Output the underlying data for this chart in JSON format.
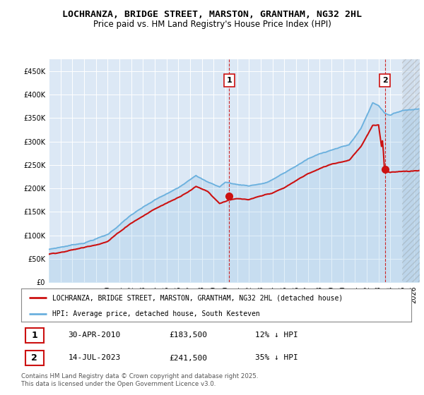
{
  "title": "LOCHRANZA, BRIDGE STREET, MARSTON, GRANTHAM, NG32 2HL",
  "subtitle": "Price paid vs. HM Land Registry's House Price Index (HPI)",
  "ylim": [
    0,
    475000
  ],
  "yticks": [
    0,
    50000,
    100000,
    150000,
    200000,
    250000,
    300000,
    350000,
    400000,
    450000
  ],
  "xlim_start": 1995.0,
  "xlim_end": 2026.5,
  "hpi_color": "#6ab0de",
  "price_color": "#cc1111",
  "vline_color": "#cc1111",
  "vline1_x": 2010.33,
  "vline2_x": 2023.54,
  "marker1_x": 2010.33,
  "marker1_y": 183500,
  "marker2_x": 2023.54,
  "marker2_y": 241500,
  "label1": "1",
  "label2": "2",
  "legend_price": "LOCHRANZA, BRIDGE STREET, MARSTON, GRANTHAM, NG32 2HL (detached house)",
  "legend_hpi": "HPI: Average price, detached house, South Kesteven",
  "annotation1_date": "30-APR-2010",
  "annotation1_price": "£183,500",
  "annotation1_hpi": "12% ↓ HPI",
  "annotation2_date": "14-JUL-2023",
  "annotation2_price": "£241,500",
  "annotation2_hpi": "35% ↓ HPI",
  "footer": "Contains HM Land Registry data © Crown copyright and database right 2025.\nThis data is licensed under the Open Government Licence v3.0.",
  "plot_bg_color": "#dce8f5",
  "grid_color": "#ffffff",
  "hatch_start": 2025.0,
  "title_fontsize": 9.5,
  "subtitle_fontsize": 8.5
}
